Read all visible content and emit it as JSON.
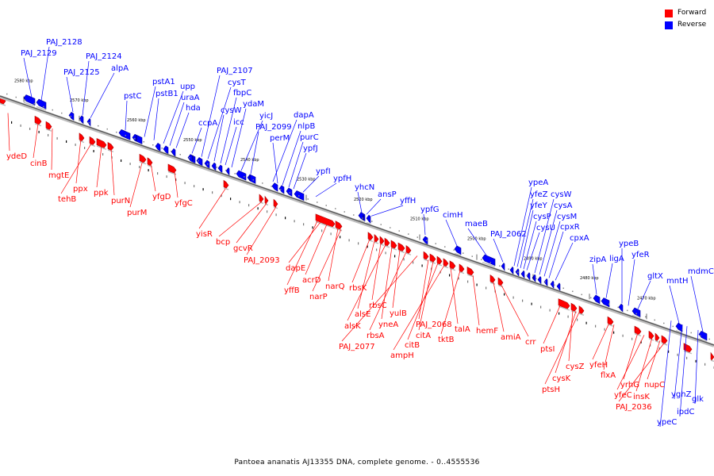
{
  "legend": {
    "forward": {
      "label": "Forward",
      "color": "#ff0000"
    },
    "reverse": {
      "label": "Reverse",
      "color": "#0000ff"
    }
  },
  "caption": "Pantoea ananatis AJ13355 DNA, complete genome. - 0..4555536",
  "ticks": [
    "2580 kbp",
    "2570 kbp",
    "2560 kbp",
    "2550 kbp",
    "2540 kbp",
    "2530 kbp",
    "2520 kbp",
    "2510 kbp",
    "2500 kbp",
    "2490 kbp",
    "2480 kbp",
    "2470 kbp"
  ],
  "reverse_genes": [
    "PAJ_2129",
    "PAJ_2128",
    "PAJ_2125",
    "PAJ_2124",
    "alpA",
    "pstC",
    "pstA1",
    "pstB1",
    "upp",
    "uraA",
    "hda",
    "ccpA",
    "PAJ_2107",
    "cysT",
    "cysW",
    "fbpC",
    "icc",
    "ydaM",
    "yicJ",
    "PAJ_2099",
    "dapA",
    "perM",
    "nlpB",
    "purC",
    "ypfJ",
    "ypfI",
    "ypfH",
    "yhcN",
    "ansP",
    "yffH",
    "ypfG",
    "cimH",
    "maeB",
    "PAJ_2062",
    "ypeA",
    "yfeZ",
    "yfeY",
    "cysP",
    "cysU",
    "cysW",
    "cysA",
    "cysM",
    "cpxR",
    "cpxA",
    "zipA",
    "ligA",
    "ypeB",
    "yfeR",
    "gltX",
    "mntH",
    "mdmC",
    "yghZ",
    "glk",
    "ipdC",
    "ypeC"
  ],
  "forward_genes": [
    "ydeD",
    "cinB",
    "mgtE",
    "ppx",
    "tehB",
    "ppk",
    "purN",
    "purM",
    "yfgD",
    "yfgC",
    "yisR",
    "bcp",
    "gcvR",
    "PAJ_2093",
    "dapE",
    "acrD",
    "yffB",
    "narQ",
    "narP",
    "rbsK",
    "alsE",
    "rbsC",
    "alsK",
    "yneA",
    "yulB",
    "rbsA",
    "PAJ_2077",
    "PAJ_2068",
    "citA",
    "citB",
    "ampH",
    "talA",
    "tktB",
    "hemF",
    "amiA",
    "crr",
    "ptsI",
    "cysZ",
    "cysK",
    "ptsH",
    "yfeH",
    "flxA",
    "yrhG",
    "yfeC",
    "insK",
    "nupC",
    "PAJ_2036"
  ]
}
